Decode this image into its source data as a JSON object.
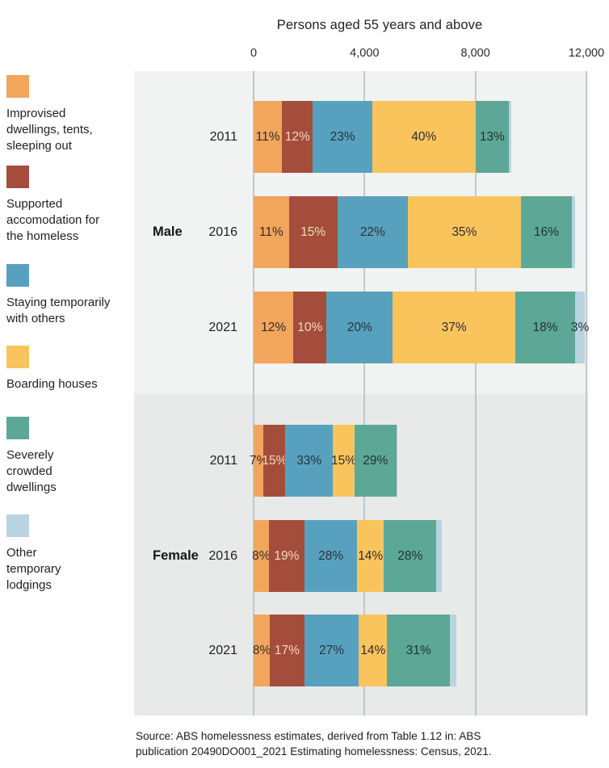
{
  "title": "Persons aged 55 years and above",
  "source_lines": [
    "Source: ABS homelessness estimates, derived from Table 1.12 in: ABS",
    "publication 20490DO001_2021 Estimating homelessness: Census, 2021."
  ],
  "legend": {
    "items": [
      {
        "name": "Improvised dwellings, tents, sleeping out",
        "lines": [
          "Improvised",
          "dwellings, tents,",
          "sleeping out"
        ],
        "color": "#F2A55C"
      },
      {
        "name": "Supported accomodation for the homeless",
        "lines": [
          "Supported",
          "accomodation for",
          "the homeless"
        ],
        "color": "#A44D3C"
      },
      {
        "name": "Staying temporarily with others",
        "lines": [
          "Staying temporarily",
          "with others"
        ],
        "color": "#58A1BE"
      },
      {
        "name": "Boarding houses",
        "lines": [
          "Boarding houses"
        ],
        "color": "#FAC45D"
      },
      {
        "name": "Severely crowded dwellings",
        "lines": [
          "Severely",
          "crowded",
          "dwellings"
        ],
        "color": "#5CA795"
      },
      {
        "name": "Other temporary lodgings",
        "lines": [
          "Other",
          "temporary",
          "lodgings"
        ],
        "color": "#B8D4E0"
      }
    ]
  },
  "chart_data": {
    "type": "bar",
    "orientation": "horizontal-stacked",
    "title": "Persons aged 55 years and above",
    "xlabel": "Persons",
    "ylabel": "",
    "axis": {
      "min": 0,
      "max": 12000,
      "ticks": [
        {
          "value": 0,
          "label": "0"
        },
        {
          "value": 4000,
          "label": "4,000"
        },
        {
          "value": 8000,
          "label": "8,000"
        },
        {
          "value": 12000,
          "label": "12,000"
        }
      ]
    },
    "series": [
      {
        "name": "Improvised dwellings, tents, sleeping out",
        "color": "#F2A55C",
        "label_color": "#2e2e2e"
      },
      {
        "name": "Supported accomodation for the homeless",
        "color": "#A44D3C",
        "label_color": "#F5DABB"
      },
      {
        "name": "Staying temporarily with others",
        "color": "#58A1BE",
        "label_color": "#26333a"
      },
      {
        "name": "Boarding houses",
        "color": "#FAC45D",
        "label_color": "#2e2e2e"
      },
      {
        "name": "Severely crowded dwellings",
        "color": "#5CA795",
        "label_color": "#24332e"
      },
      {
        "name": "Other temporary lodgings",
        "color": "#B8D4E0",
        "label_color": "#2e2e2e"
      }
    ],
    "groups": [
      {
        "name": "Male",
        "background": "#F1F2F2",
        "bars": [
          {
            "year": "2011",
            "total": 9300,
            "percents": [
              11,
              12,
              23,
              40,
              13,
              1
            ],
            "labels": [
              "11%",
              "12%",
              "23%",
              "40%",
              "13%",
              ""
            ]
          },
          {
            "year": "2016",
            "total": 11600,
            "percents": [
              11,
              15,
              22,
              35,
              16,
              1
            ],
            "labels": [
              "11%",
              "15%",
              "22%",
              "35%",
              "16%",
              ""
            ]
          },
          {
            "year": "2021",
            "total": 11950,
            "percents": [
              12,
              10,
              20,
              37,
              18,
              3
            ],
            "labels": [
              "12%",
              "10%",
              "20%",
              "37%",
              "18%",
              "3%"
            ]
          }
        ]
      },
      {
        "name": "Female",
        "background": "#E8E9E9",
        "bars": [
          {
            "year": "2011",
            "total": 5200,
            "percents": [
              7,
              15,
              33,
              15,
              29,
              1
            ],
            "labels": [
              "7%",
              "15%",
              "33%",
              "15%",
              "29%",
              ""
            ]
          },
          {
            "year": "2016",
            "total": 6800,
            "percents": [
              8,
              19,
              28,
              14,
              28,
              3
            ],
            "labels": [
              "8%",
              "19%",
              "28%",
              "14%",
              "28%",
              ""
            ]
          },
          {
            "year": "2021",
            "total": 7300,
            "percents": [
              8,
              17,
              27,
              14,
              31,
              3
            ],
            "labels": [
              "8%",
              "17%",
              "27%",
              "14%",
              "31%",
              ""
            ]
          }
        ]
      }
    ],
    "grid": true,
    "legend_position": "left",
    "gridline_color": "#C2C7CB"
  }
}
